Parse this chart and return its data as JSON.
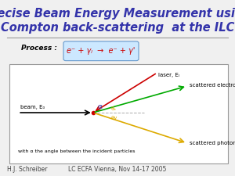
{
  "title_line1": "Precise Beam Energy Measurement using",
  "title_line2": "Compton back-scattering  at the ILC",
  "title_color": "#3333aa",
  "title_fontsize": 10.5,
  "process_label": "Process :",
  "process_formula": "e⁻ + γₗ  →  e⁻ + γ'",
  "formula_color": "#cc0000",
  "beam_label": "beam, E₀",
  "laser_label": "laser, Eₗ",
  "scattered_e_label": "scattered electron, Eₑ",
  "scattered_ph_label": "scattered photon, Eγ",
  "angle_label": "α",
  "angle_label2": "θₑ",
  "angle_label3": "θγ",
  "note_text": "with α the angle between the incident particles",
  "footer_left": "H.J. Schreiber",
  "footer_right": "LC ECFA Vienna, Nov 14-17 2005",
  "footer_fontsize": 5.5,
  "beam_color": "#000000",
  "laser_color": "#cc0000",
  "electron_color": "#00aa00",
  "photon_color": "#ddaa00",
  "dot_color": "#cc0000",
  "dashed_color": "#aaaaaa",
  "hline_color": "#999999",
  "box_edge_color": "#999999",
  "formula_box_face": "#cce8ff",
  "formula_box_edge": "#6699cc"
}
